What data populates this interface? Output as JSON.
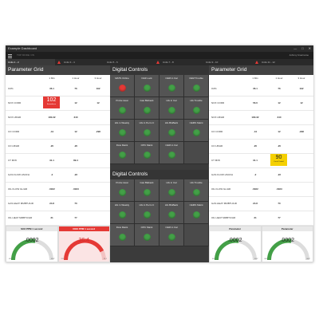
{
  "window": {
    "title": "Example Dashboard",
    "controls": [
      "—",
      "□",
      "✕"
    ]
  },
  "menubar": {
    "top_mode": "TOP MODE: ON",
    "user": "Johnny Username"
  },
  "tabs": [
    {
      "label": "Units 1 - 2",
      "alarm": false,
      "active": true
    },
    {
      "label": "Units 3 - 4",
      "alarm": true,
      "active": false
    },
    {
      "label": "Units 5 - 6",
      "alarm": false,
      "active": false
    },
    {
      "label": "Units 7 - 8",
      "alarm": true,
      "active": false
    },
    {
      "label": "Units 9 - 10",
      "alarm": false,
      "active": false
    },
    {
      "label": "Units 11 - 12",
      "alarm": true,
      "active": false
    }
  ],
  "left_grid": {
    "title": "Parameter Grid",
    "columns": [
      "1 Min",
      "1 Hour",
      "3 Hour"
    ],
    "rows": [
      {
        "label": "O2%",
        "values": [
          "36.1",
          "76",
          "192"
        ]
      },
      {
        "label": "NOX CORR",
        "values": [
          "102",
          "12",
          "12"
        ],
        "highlight": {
          "col": 0,
          "color": "#e53935",
          "sub": "Exceedance"
        }
      },
      {
        "label": "NOX LB/HR",
        "values": [
          "180.32",
          "340",
          ""
        ]
      },
      {
        "label": "CO CORR",
        "values": [
          ".44",
          "12",
          ".298"
        ]
      },
      {
        "label": "CO LB/HR",
        "values": [
          ".20",
          ".20",
          ""
        ]
      },
      {
        "label": "CT M/W",
        "values": [
          "31.1",
          "89.4",
          ""
        ]
      },
      {
        "label": "GAS FLOW HSCFH",
        "values": [
          ".2",
          ".22",
          ""
        ]
      },
      {
        "label": "OIL FLOW GL/HR",
        "values": [
          ".0022",
          ".0023",
          ""
        ]
      },
      {
        "label": "GAS HEAT MMBTU/HR",
        "values": [
          "24.8",
          "70",
          ""
        ]
      },
      {
        "label": "OIL HEAT MMBTU/HR",
        "values": [
          "31",
          "77",
          ""
        ]
      }
    ],
    "gauges": [
      {
        "title": "SO2 PPM 1 second",
        "value": ".0002",
        "min": "0007",
        "max": "0007",
        "level": 0.55,
        "alarm": false
      },
      {
        "title": "NOX PPM 1 second",
        "value": "36.4",
        "min": "31.1",
        "max": "31.1",
        "level": 0.85,
        "alarm": true
      }
    ]
  },
  "right_grid": {
    "title": "Parameter Grid",
    "columns": [
      "1 Min",
      "1 Hour",
      "3 Hour"
    ],
    "rows": [
      {
        "label": "O2%",
        "values": [
          "36.1",
          "76",
          "192"
        ]
      },
      {
        "label": "NOX CORR",
        "values": [
          "56.6",
          "12",
          "12"
        ]
      },
      {
        "label": "NOX LB/HR",
        "values": [
          "180.32",
          "340",
          ""
        ]
      },
      {
        "label": "CO CORR",
        "values": [
          ".44",
          "12",
          ".298"
        ]
      },
      {
        "label": "CO LB/HR",
        "values": [
          ".20",
          ".20",
          ""
        ]
      },
      {
        "label": "CT M/W",
        "values": [
          "31.1",
          "90",
          ""
        ],
        "highlight": {
          "col": 1,
          "color": "#f5d000",
          "sub": "Out of Control"
        }
      },
      {
        "label": "GAS FLOW HSCFH",
        "values": [
          ".2",
          ".22",
          ""
        ]
      },
      {
        "label": "OIL FLOW GL/HR",
        "values": [
          ".0022",
          ".0023",
          ""
        ]
      },
      {
        "label": "GAS HEAT MMBTU/HR",
        "values": [
          "24.8",
          "70",
          ""
        ]
      },
      {
        "label": "OIL HEAT MMBTU/HR",
        "values": [
          "31",
          "77",
          ""
        ]
      }
    ],
    "gauges": [
      {
        "title": "Parameter",
        "value": ".0002",
        "min": "0007",
        "max": "0007",
        "level": 0.55,
        "alarm": false
      },
      {
        "title": "Parameter",
        "value": ".0002",
        "min": "0007",
        "max": "0007",
        "level": 0.55,
        "alarm": false
      }
    ]
  },
  "controls_top": {
    "title": "Digital Controls",
    "cells": [
      {
        "label": "MATS Online",
        "state": "red"
      },
      {
        "label": "NH3 Lock",
        "state": "green"
      },
      {
        "label": "CEM in Cal",
        "state": "green"
      },
      {
        "label": "CEM Trouble",
        "state": "green"
      },
      {
        "label": "Probe Heat",
        "state": "green"
      },
      {
        "label": "Gas Bloback",
        "state": "green"
      },
      {
        "label": "HG in Cal",
        "state": "green"
      },
      {
        "label": "HG Trouble",
        "state": "green"
      },
      {
        "label": "HG in Weekly",
        "state": "green"
      },
      {
        "label": "HG in Perm C",
        "state": "green"
      },
      {
        "label": "HG BloBack",
        "state": "green"
      },
      {
        "label": "CEMS Maint",
        "state": "green"
      },
      {
        "label": "Flow Maint",
        "state": "green"
      },
      {
        "label": "OPC Maint",
        "state": "green"
      },
      {
        "label": "CEM in Cal",
        "state": "green"
      },
      {
        "label": "",
        "state": "none"
      }
    ]
  },
  "controls_bottom": {
    "title": "Digital Controls",
    "cells": [
      {
        "label": "Probe Heat",
        "state": "green"
      },
      {
        "label": "Gas Blaback",
        "state": "green"
      },
      {
        "label": "HG in Cal",
        "state": "green"
      },
      {
        "label": "HG Trouble",
        "state": "green"
      },
      {
        "label": "HG in Weekly",
        "state": "green"
      },
      {
        "label": "HG in Perm C",
        "state": "green"
      },
      {
        "label": "HG BloBack",
        "state": "green"
      },
      {
        "label": "CEMS Maint",
        "state": "green"
      },
      {
        "label": "Flow Maint",
        "state": "green"
      },
      {
        "label": "OPC Maint",
        "state": "green"
      },
      {
        "label": "CEM in Cal",
        "state": "green"
      },
      {
        "label": "",
        "state": "none"
      }
    ]
  },
  "colors": {
    "led_green": "#43a047",
    "led_red": "#e53935",
    "alarm_red": "#e53935",
    "warn_yellow": "#f5d000",
    "gauge_green": "#43a047",
    "gauge_red": "#e53935"
  }
}
